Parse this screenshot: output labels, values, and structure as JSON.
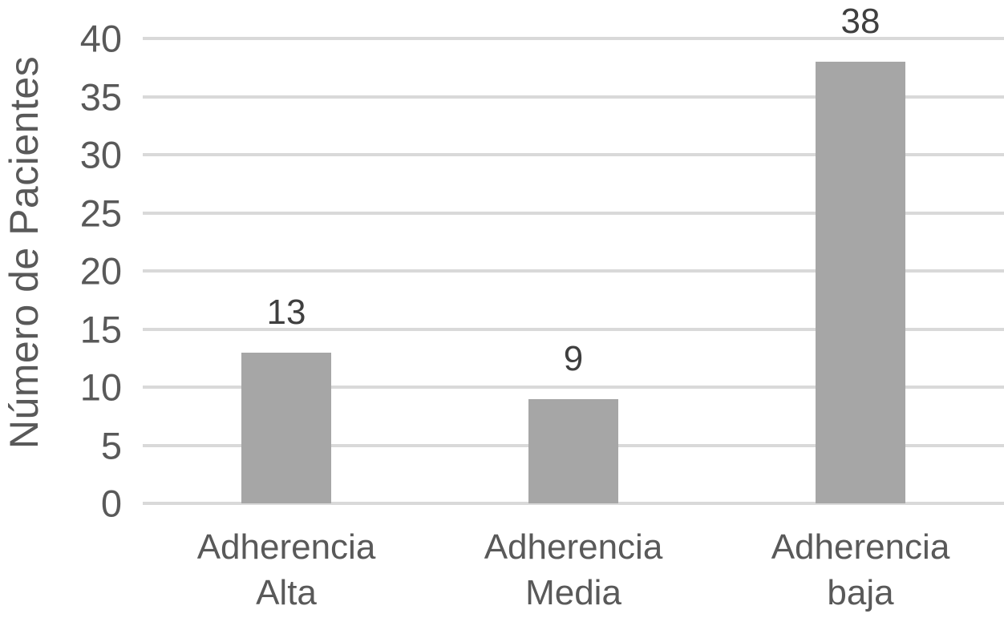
{
  "chart_data": {
    "type": "bar",
    "categories": [
      "Adherencia Alta",
      "Adherencia Media",
      "Adherencia baja"
    ],
    "values": [
      13,
      9,
      38
    ],
    "title": "",
    "xlabel": "",
    "ylabel": "Número de Pacientes",
    "ylim": [
      0,
      40
    ],
    "ytick_step": 5,
    "yticks": [
      0,
      5,
      10,
      15,
      20,
      25,
      30,
      35,
      40
    ],
    "grid": true,
    "legend": false,
    "data_labels_shown": true,
    "colors": {
      "bar": "#a6a6a6",
      "gridline": "#d9d9d9",
      "axis_text": "#595959",
      "data_label": "#3f3f3f",
      "background": "#ffffff"
    }
  }
}
